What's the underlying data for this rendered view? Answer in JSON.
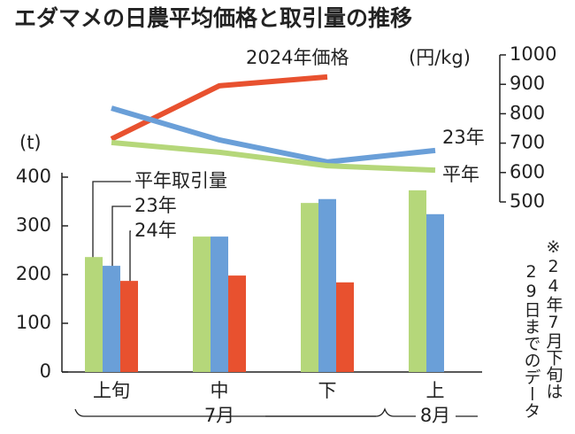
{
  "chart_data": {
    "type": "bar",
    "title": "エダマメの日農平均価格と取引量の推移",
    "categories": [
      "上旬",
      "中",
      "下",
      "上"
    ],
    "month_groups": [
      "7月",
      "8月"
    ],
    "ylabel": "(t)",
    "y2label": "(円/kg)",
    "ylim": [
      0,
      400
    ],
    "yticks": [
      0,
      100,
      200,
      300,
      400
    ],
    "y2lim": [
      500,
      1000
    ],
    "y2ticks": [
      500,
      600,
      700,
      800,
      900,
      1000
    ],
    "grid": false,
    "series": [
      {
        "name": "平年取引量",
        "type": "bar",
        "color": "#b5d77a",
        "values": [
          236,
          278,
          347,
          373
        ]
      },
      {
        "name": "23年",
        "type": "bar",
        "color": "#6a9fd8",
        "values": [
          218,
          278,
          355,
          324
        ]
      },
      {
        "name": "24年",
        "type": "bar",
        "color": "#e8512f",
        "values": [
          187,
          198,
          184,
          null
        ]
      },
      {
        "name": "2024年価格",
        "type": "line",
        "axis": "y2",
        "color": "#e8512f",
        "values": [
          714,
          895,
          925,
          null
        ]
      },
      {
        "name": "23年",
        "type": "line",
        "axis": "y2",
        "color": "#6a9fd8",
        "values": [
          819,
          711,
          636,
          675
        ]
      },
      {
        "name": "平年",
        "type": "line",
        "axis": "y2",
        "color": "#b5d77a",
        "values": [
          702,
          669,
          623,
          608
        ]
      }
    ],
    "note": [
      "※24年7月下旬は",
      "29日までのデータ"
    ]
  }
}
